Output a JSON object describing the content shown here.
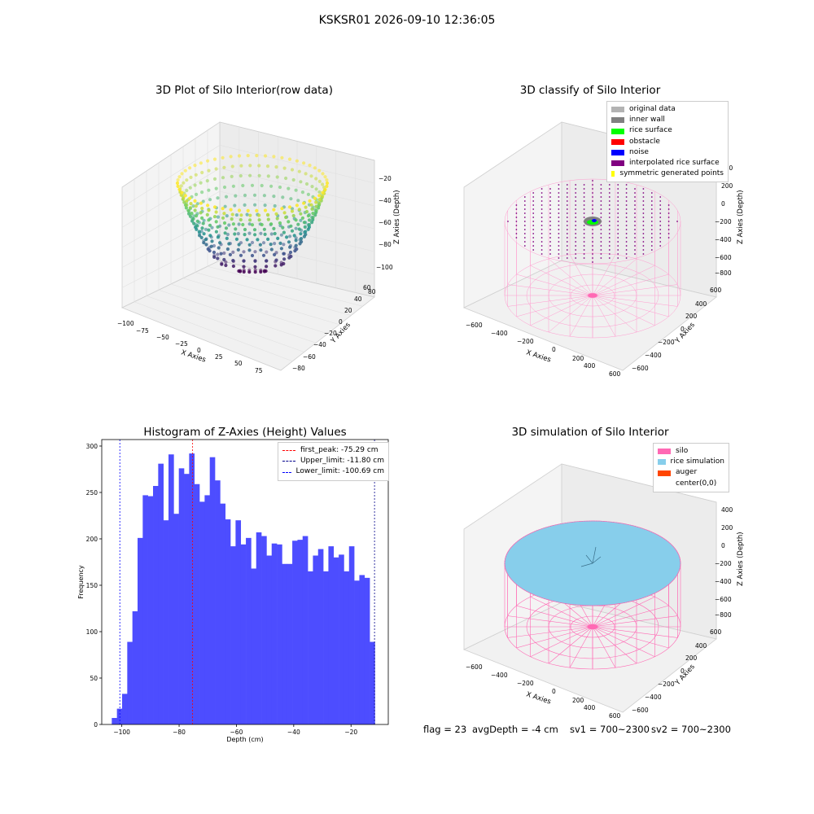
{
  "figure": {
    "suptitle": "KSKSR01 2026-09-10 12:36:05"
  },
  "footer": {
    "flag": "flag = 23",
    "avg_depth": "avgDepth = -4 cm",
    "sv1": "sv1 = 700~2300",
    "sv2": "sv2 = 700~2300"
  },
  "panels": {
    "raw": {
      "title": "3D Plot of Silo Interior(row data)",
      "xlabel": "X Axies",
      "ylabel": "Y Axies",
      "zlabel": "Z Axies (Depth)",
      "xticks": [
        "−100",
        "−75",
        "−50",
        "−25",
        "0",
        "25",
        "50",
        "75"
      ],
      "yticks": [
        "−80",
        "−60",
        "−40",
        "−20",
        "0",
        "20",
        "40",
        "60",
        "80"
      ],
      "zticks": [
        "−20",
        "−40",
        "−60",
        "−80",
        "−100"
      ]
    },
    "classify": {
      "title": "3D classify of Silo Interior",
      "xlabel": "X Axies",
      "ylabel": "Y Axies",
      "zlabel": "Z Axies (Depth)",
      "xticks": [
        "−600",
        "−400",
        "−200",
        "0",
        "200",
        "400",
        "600"
      ],
      "yticks": [
        "600",
        "400",
        "200",
        "0",
        "−200",
        "−400",
        "−600"
      ],
      "zticks": [
        "400",
        "200",
        "0",
        "−200",
        "−400",
        "−600",
        "−800"
      ],
      "legend": [
        {
          "label": "original data",
          "color": "#b3b3b3"
        },
        {
          "label": "inner wall",
          "color": "#808080"
        },
        {
          "label": "rice surface",
          "color": "#00ff00"
        },
        {
          "label": "obstacle",
          "color": "#ff0000"
        },
        {
          "label": "noise",
          "color": "#0000ff"
        },
        {
          "label": "interpolated rice surface",
          "color": "#800080"
        },
        {
          "label": "symmetric generated points",
          "color": "#ffff00"
        }
      ]
    },
    "simulation": {
      "title": "3D simulation of Silo Interior",
      "xlabel": "X Axies",
      "ylabel": "Y Axies",
      "zlabel": "Z Axies (Depth)",
      "xticks": [
        "−600",
        "−400",
        "−200",
        "0",
        "200",
        "400",
        "600"
      ],
      "yticks": [
        "600",
        "400",
        "200",
        "0",
        "−200",
        "−400",
        "−600"
      ],
      "zticks": [
        "400",
        "200",
        "0",
        "−200",
        "−400",
        "−600",
        "−800"
      ],
      "legend": [
        {
          "label": "silo",
          "color": "#ff69b4"
        },
        {
          "label": "rice simulation",
          "color": "#87ceeb"
        },
        {
          "label": "auger",
          "color": "#ff4500"
        },
        {
          "label": "center(0,0)",
          "color": "#ffffff"
        }
      ]
    }
  },
  "chart_data": {
    "type": "bar",
    "title": "Histogram of Z-Axies (Height) Values",
    "xlabel": "Depth (cm)",
    "ylabel": "Frequency",
    "xlim": [
      -107,
      -7
    ],
    "ylim": [
      0,
      307
    ],
    "xticks": [
      -100,
      -80,
      -60,
      -40,
      -20
    ],
    "yticks": [
      0,
      50,
      100,
      150,
      200,
      250,
      300
    ],
    "bin_start": -103.5,
    "bin_width": 1.8,
    "values": [
      7,
      17,
      33,
      89,
      122,
      201,
      247,
      246,
      257,
      281,
      220,
      291,
      227,
      276,
      270,
      292,
      259,
      240,
      247,
      288,
      263,
      238,
      221,
      192,
      220,
      194,
      201,
      168,
      207,
      203,
      182,
      195,
      194,
      173,
      173,
      198,
      199,
      203,
      165,
      182,
      189,
      165,
      192,
      180,
      183,
      165,
      192,
      155,
      161,
      158,
      89
    ],
    "vlines": [
      {
        "x": -75.29,
        "label": "first_peak: -75.29 cm",
        "color": "#ff0000"
      },
      {
        "x": -11.8,
        "label": "Upper_limit: -11.80 cm",
        "color": "#00008b"
      },
      {
        "x": -100.69,
        "label": "Lower_limit: -100.69 cm",
        "color": "#0000ff"
      }
    ],
    "bar_color": "#4d4dff",
    "legend_position": "upper right",
    "grid": false
  }
}
